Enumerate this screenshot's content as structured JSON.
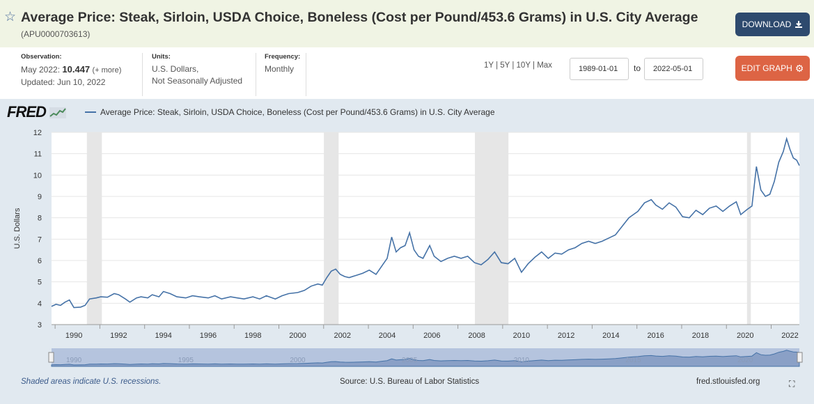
{
  "header": {
    "title": "Average Price: Steak, Sirloin, USDA Choice, Boneless (Cost per Pound/453.6 Grams) in U.S. City Average",
    "series_id": "(APU0000703613)",
    "star_icon": "star-outline-icon",
    "download_label": "DOWNLOAD"
  },
  "meta": {
    "observation_label": "Observation:",
    "observation_date": "May 2022:",
    "observation_value": "10.447",
    "observation_more": "(+ more)",
    "updated": "Updated: Jun 10, 2022",
    "units_label": "Units:",
    "units_line1": "U.S. Dollars,",
    "units_line2": "Not Seasonally Adjusted",
    "frequency_label": "Frequency:",
    "frequency_value": "Monthly"
  },
  "controls": {
    "range_1y": "1Y",
    "range_5y": "5Y",
    "range_10y": "10Y",
    "range_max": "Max",
    "separator": "|",
    "start_date": "1989-01-01",
    "to_label": "to",
    "end_date": "2022-05-01",
    "edit_label": "EDIT GRAPH"
  },
  "footer": {
    "recession_note": "Shaded areas indicate U.S. recessions.",
    "source": "Source: U.S. Bureau of Labor Statistics",
    "site": "fred.stlouisfed.org"
  },
  "colors": {
    "line": "#4572a7",
    "recession": "#e6e6e6",
    "plot_bg": "#ffffff",
    "panel_bg": "#e1e9f0",
    "edit": "#dd6444",
    "download": "#2e4a6e"
  },
  "chart_data": {
    "type": "line",
    "logo": "FRED",
    "legend": "Average Price: Steak, Sirloin, USDA Choice, Boneless (Cost per Pound/453.6 Grams) in U.S. City Average",
    "ylabel": "U.S. Dollars",
    "ylim": [
      3,
      12
    ],
    "xlim": [
      1989.0,
      2022.42
    ],
    "yticks": [
      3,
      4,
      5,
      6,
      7,
      8,
      9,
      10,
      11,
      12
    ],
    "xticks": [
      1990,
      1992,
      1994,
      1996,
      1998,
      2000,
      2002,
      2004,
      2006,
      2008,
      2010,
      2012,
      2014,
      2016,
      2018,
      2020,
      2022
    ],
    "navigator_labels": [
      1990,
      1995,
      2000,
      2005,
      2010,
      2015,
      2020
    ],
    "grid": true,
    "recessions": [
      [
        1990.58,
        1991.25
      ],
      [
        2001.17,
        2001.83
      ],
      [
        2007.92,
        2009.42
      ],
      [
        2020.08,
        2020.25
      ]
    ],
    "series": [
      {
        "values": [
          [
            1989.0,
            3.85
          ],
          [
            1989.2,
            3.95
          ],
          [
            1989.4,
            3.9
          ],
          [
            1989.6,
            4.05
          ],
          [
            1989.8,
            4.15
          ],
          [
            1990.0,
            3.8
          ],
          [
            1990.3,
            3.82
          ],
          [
            1990.5,
            3.9
          ],
          [
            1990.7,
            4.2
          ],
          [
            1991.0,
            4.25
          ],
          [
            1991.2,
            4.3
          ],
          [
            1991.5,
            4.28
          ],
          [
            1991.8,
            4.45
          ],
          [
            1992.0,
            4.4
          ],
          [
            1992.3,
            4.2
          ],
          [
            1992.5,
            4.05
          ],
          [
            1992.8,
            4.25
          ],
          [
            1993.0,
            4.3
          ],
          [
            1993.3,
            4.25
          ],
          [
            1993.5,
            4.4
          ],
          [
            1993.8,
            4.3
          ],
          [
            1994.0,
            4.55
          ],
          [
            1994.3,
            4.45
          ],
          [
            1994.6,
            4.3
          ],
          [
            1995.0,
            4.25
          ],
          [
            1995.3,
            4.35
          ],
          [
            1995.6,
            4.3
          ],
          [
            1996.0,
            4.25
          ],
          [
            1996.3,
            4.35
          ],
          [
            1996.6,
            4.2
          ],
          [
            1997.0,
            4.3
          ],
          [
            1997.3,
            4.25
          ],
          [
            1997.6,
            4.2
          ],
          [
            1998.0,
            4.3
          ],
          [
            1998.3,
            4.2
          ],
          [
            1998.6,
            4.35
          ],
          [
            1999.0,
            4.2
          ],
          [
            1999.3,
            4.35
          ],
          [
            1999.6,
            4.45
          ],
          [
            2000.0,
            4.5
          ],
          [
            2000.3,
            4.6
          ],
          [
            2000.6,
            4.8
          ],
          [
            2000.9,
            4.9
          ],
          [
            2001.1,
            4.85
          ],
          [
            2001.3,
            5.2
          ],
          [
            2001.5,
            5.5
          ],
          [
            2001.7,
            5.6
          ],
          [
            2001.9,
            5.35
          ],
          [
            2002.1,
            5.25
          ],
          [
            2002.3,
            5.2
          ],
          [
            2002.6,
            5.3
          ],
          [
            2002.9,
            5.4
          ],
          [
            2003.2,
            5.55
          ],
          [
            2003.5,
            5.35
          ],
          [
            2003.8,
            5.8
          ],
          [
            2004.0,
            6.1
          ],
          [
            2004.2,
            7.1
          ],
          [
            2004.4,
            6.4
          ],
          [
            2004.6,
            6.6
          ],
          [
            2004.8,
            6.7
          ],
          [
            2005.0,
            7.3
          ],
          [
            2005.2,
            6.5
          ],
          [
            2005.4,
            6.2
          ],
          [
            2005.6,
            6.1
          ],
          [
            2005.9,
            6.7
          ],
          [
            2006.1,
            6.2
          ],
          [
            2006.4,
            5.95
          ],
          [
            2006.7,
            6.1
          ],
          [
            2007.0,
            6.2
          ],
          [
            2007.3,
            6.1
          ],
          [
            2007.6,
            6.2
          ],
          [
            2007.9,
            5.9
          ],
          [
            2008.2,
            5.8
          ],
          [
            2008.5,
            6.05
          ],
          [
            2008.8,
            6.4
          ],
          [
            2009.1,
            5.9
          ],
          [
            2009.4,
            5.85
          ],
          [
            2009.7,
            6.1
          ],
          [
            2010.0,
            5.45
          ],
          [
            2010.3,
            5.85
          ],
          [
            2010.6,
            6.15
          ],
          [
            2010.9,
            6.4
          ],
          [
            2011.2,
            6.1
          ],
          [
            2011.5,
            6.35
          ],
          [
            2011.8,
            6.3
          ],
          [
            2012.1,
            6.5
          ],
          [
            2012.4,
            6.6
          ],
          [
            2012.7,
            6.8
          ],
          [
            2013.0,
            6.9
          ],
          [
            2013.3,
            6.8
          ],
          [
            2013.6,
            6.9
          ],
          [
            2013.9,
            7.05
          ],
          [
            2014.2,
            7.2
          ],
          [
            2014.5,
            7.6
          ],
          [
            2014.8,
            8.0
          ],
          [
            2015.0,
            8.15
          ],
          [
            2015.2,
            8.3
          ],
          [
            2015.5,
            8.7
          ],
          [
            2015.8,
            8.85
          ],
          [
            2016.0,
            8.6
          ],
          [
            2016.3,
            8.4
          ],
          [
            2016.6,
            8.7
          ],
          [
            2016.9,
            8.5
          ],
          [
            2017.2,
            8.05
          ],
          [
            2017.5,
            8.0
          ],
          [
            2017.8,
            8.35
          ],
          [
            2018.1,
            8.15
          ],
          [
            2018.4,
            8.45
          ],
          [
            2018.7,
            8.55
          ],
          [
            2019.0,
            8.3
          ],
          [
            2019.3,
            8.55
          ],
          [
            2019.6,
            8.75
          ],
          [
            2019.8,
            8.15
          ],
          [
            2020.1,
            8.4
          ],
          [
            2020.3,
            8.55
          ],
          [
            2020.5,
            10.4
          ],
          [
            2020.7,
            9.3
          ],
          [
            2020.9,
            9.0
          ],
          [
            2021.1,
            9.1
          ],
          [
            2021.3,
            9.7
          ],
          [
            2021.5,
            10.6
          ],
          [
            2021.7,
            11.1
          ],
          [
            2021.85,
            11.7
          ],
          [
            2022.0,
            11.2
          ],
          [
            2022.15,
            10.8
          ],
          [
            2022.3,
            10.7
          ],
          [
            2022.42,
            10.447
          ]
        ]
      }
    ]
  }
}
